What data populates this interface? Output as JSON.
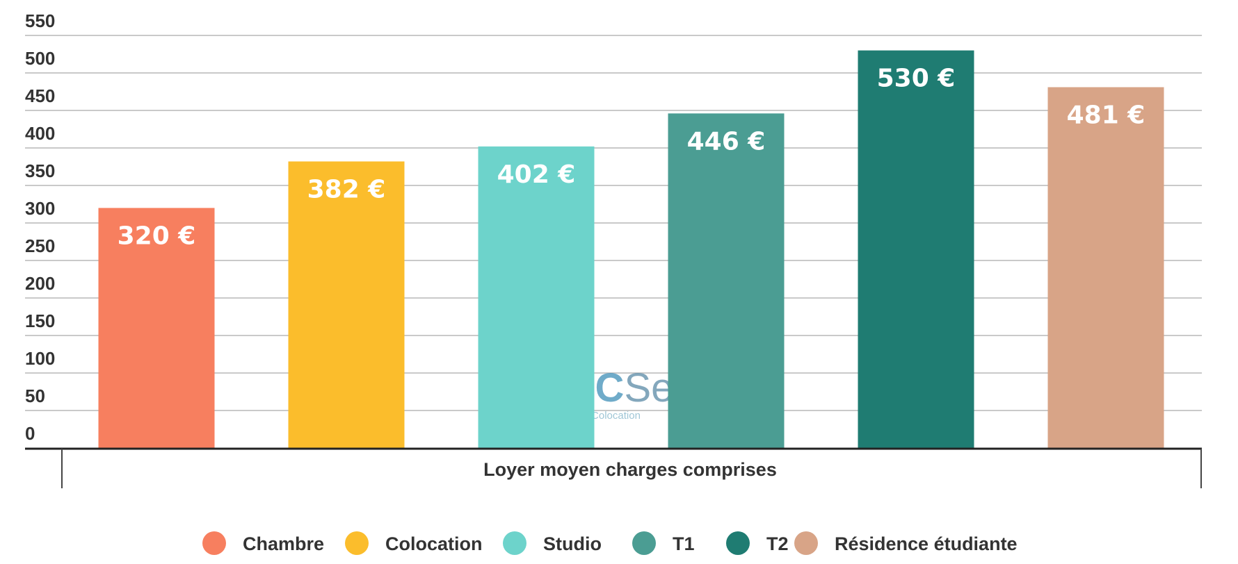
{
  "chart_data": {
    "type": "bar",
    "categories": [
      "Chambre",
      "Colocation",
      "Studio",
      "T1",
      "T2",
      "Résidence étudiante"
    ],
    "values": [
      320,
      382,
      402,
      446,
      530,
      481
    ],
    "value_labels": [
      "320 €",
      "382 €",
      "402 €",
      "446 €",
      "530 €",
      "481 €"
    ],
    "colors": [
      "#f77f5f",
      "#fbbd2c",
      "#6dd3cb",
      "#4b9d93",
      "#1f7c72",
      "#d8a487"
    ],
    "xlabel": "Loyer moyen charges comprises",
    "ylabel": "",
    "ylim": [
      0,
      550
    ],
    "yticks": [
      "0",
      "50",
      "100",
      "150",
      "200",
      "250",
      "300",
      "350",
      "400",
      "450",
      "500",
      "550"
    ],
    "grid": true,
    "legend": "bottom"
  },
  "watermark": {
    "brand_loc": "LOC",
    "brand_service": "Service",
    "tagline": "Location & Colocation"
  }
}
